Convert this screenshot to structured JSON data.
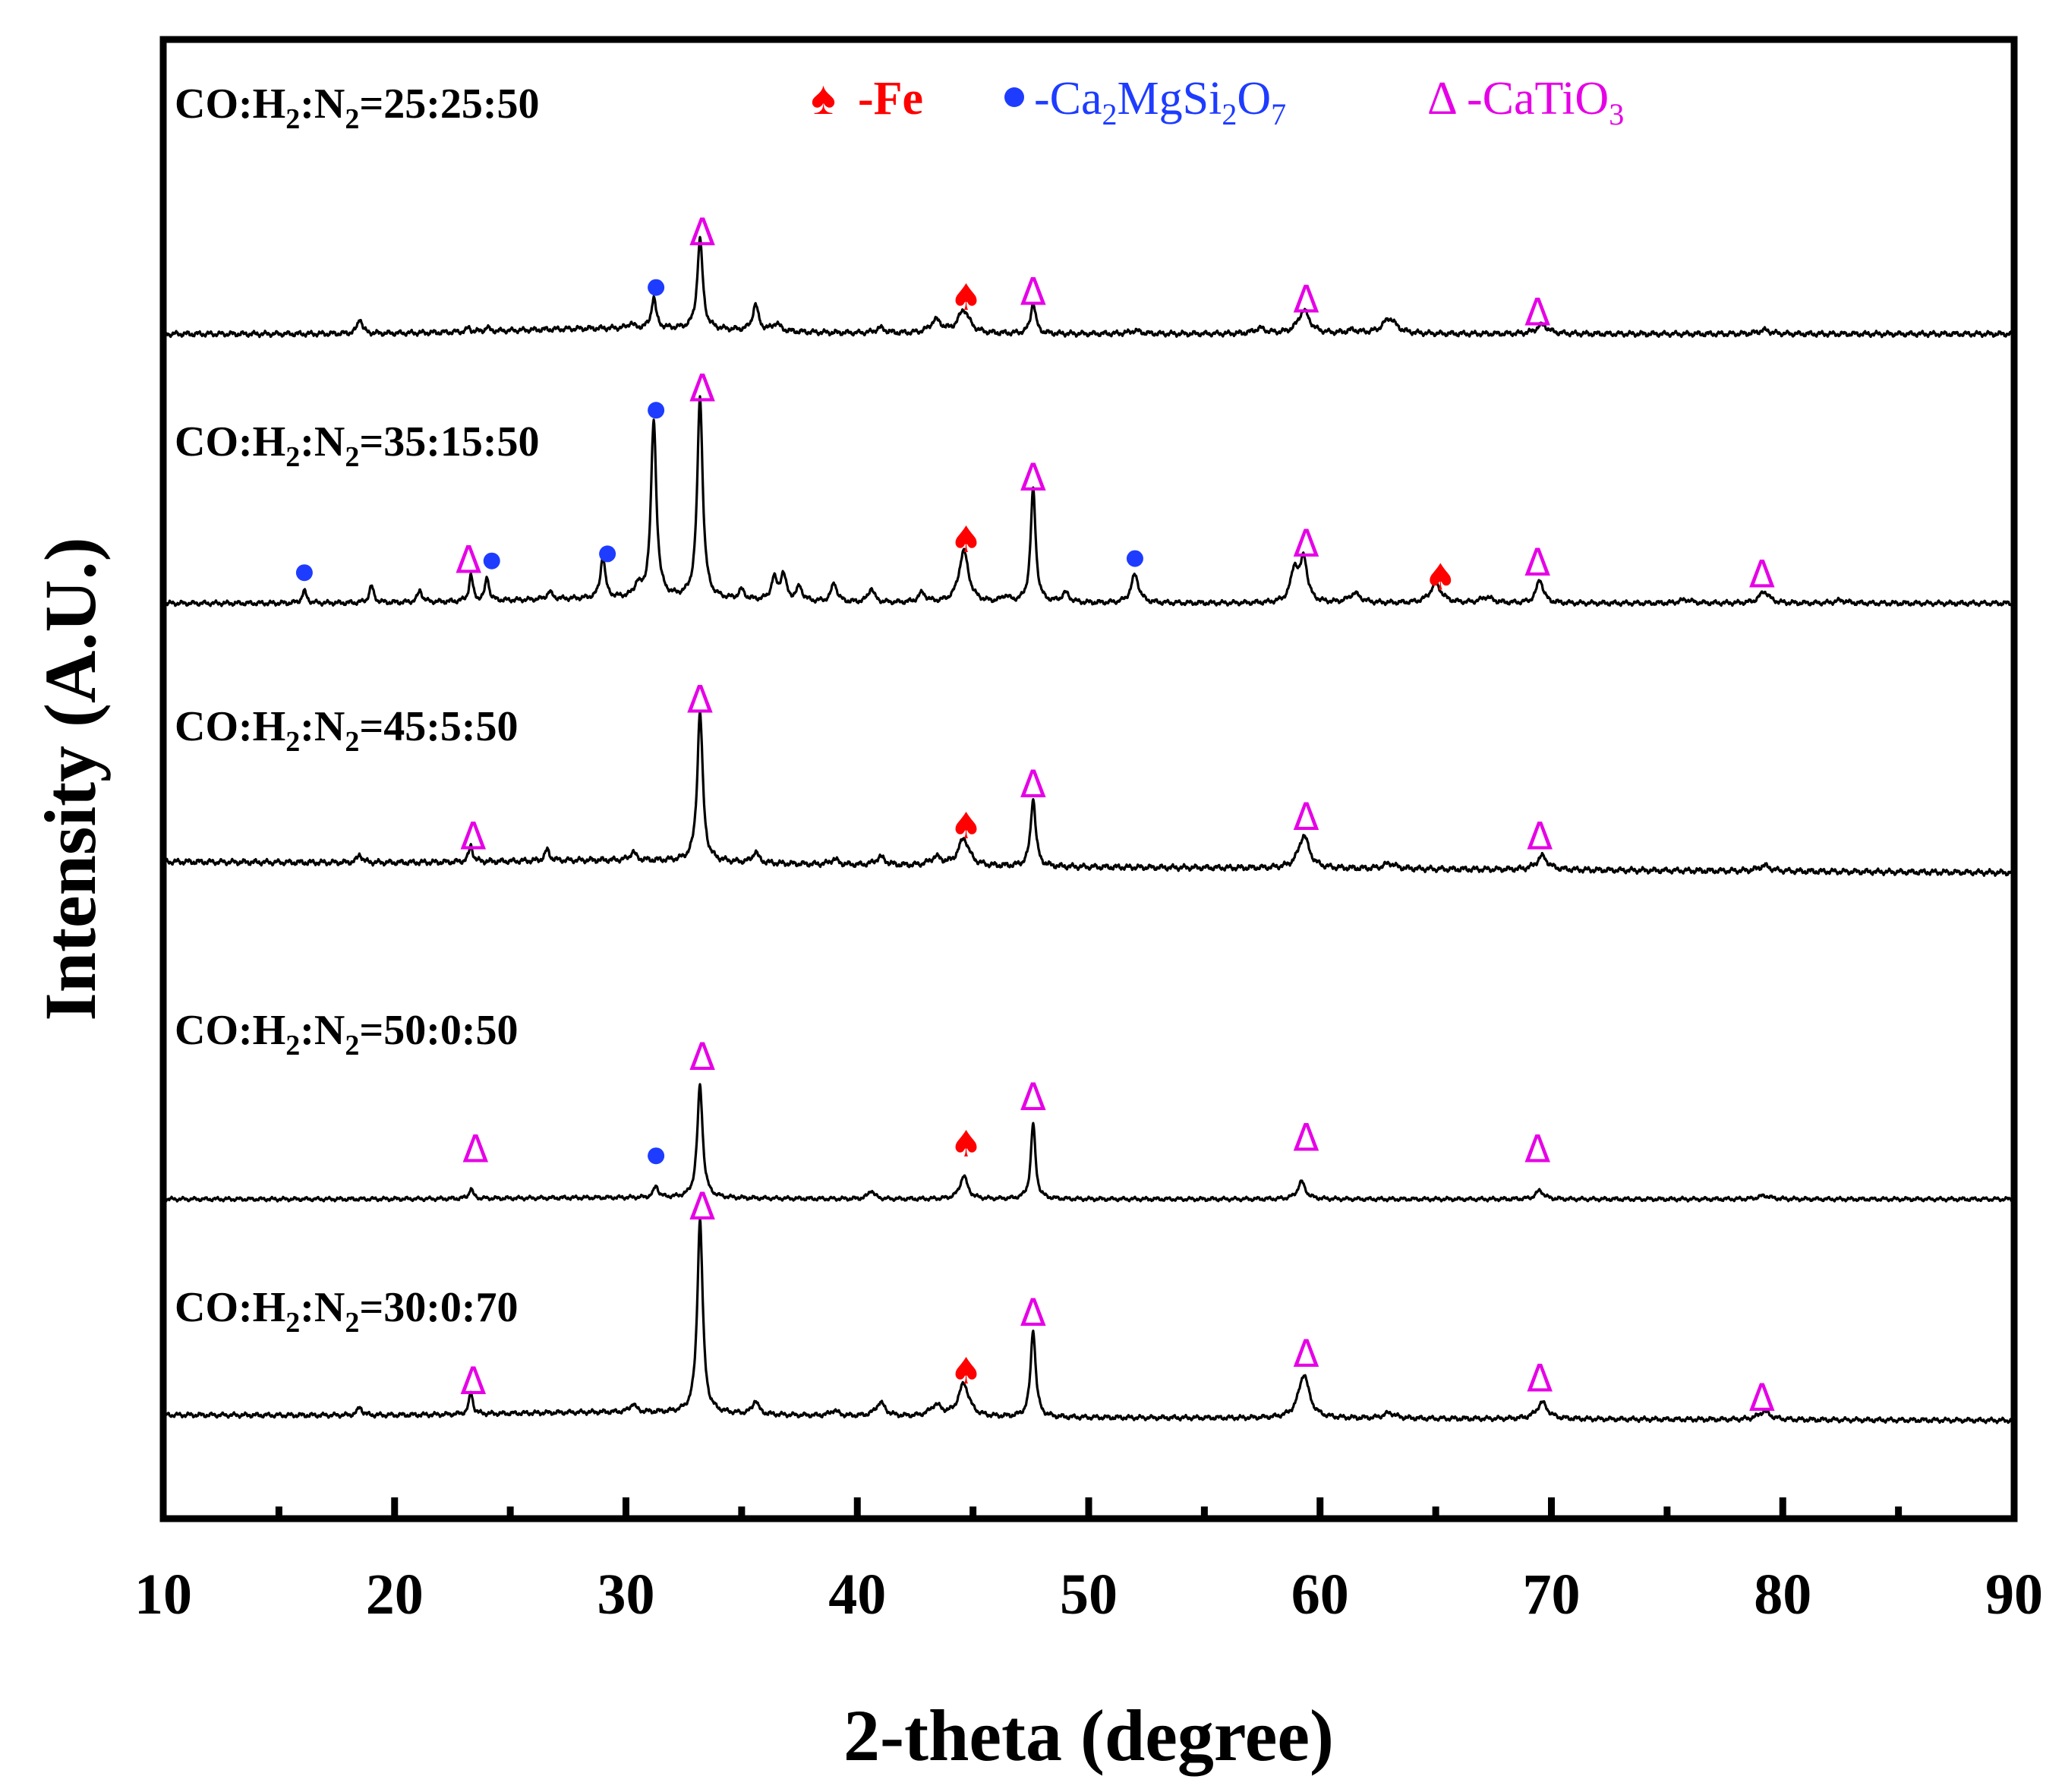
{
  "chart_data": {
    "type": "line",
    "title": "",
    "xlabel": "2-theta (degree)",
    "ylabel": "Intensity (A.U.)",
    "xlim": [
      10,
      90
    ],
    "xticks": [
      10,
      20,
      30,
      40,
      50,
      60,
      70,
      80,
      90
    ],
    "grid": false,
    "legend": {
      "placement": "top-center",
      "entries": [
        {
          "symbol": "♠",
          "text": "-Fe",
          "color": "#ff0000",
          "bold": true
        },
        {
          "symbol": "●",
          "text": "-Ca",
          "sub1": "2",
          "text2": "MgSi",
          "sub2": "2",
          "text3": "O",
          "sub3": "7",
          "color": "#1e3cff"
        },
        {
          "symbol": "Δ",
          "text": "-CaTiO",
          "sub1": "3",
          "color": "#e600e6"
        }
      ]
    },
    "colors": {
      "line": "#000000",
      "Fe": "#ff0000",
      "Ca2MgSi2O7": "#1e3cff",
      "CaTiO3": "#e600e6"
    },
    "series": [
      {
        "name": "CO:H2:N2=25:25:50",
        "label_main": "CO:H",
        "label_sub1": "2",
        "label_mid": ":N",
        "label_sub2": "2",
        "label_end": "=25:25:50",
        "baseline": 0.8,
        "slope": 0.0,
        "hump": 0.22,
        "noise": 0.12,
        "peaks": [
          [
            18.5,
            0.6,
            0.12
          ],
          [
            23.2,
            0.15,
            0.1
          ],
          [
            24.0,
            0.15,
            0.1
          ],
          [
            30.2,
            0.2,
            0.12
          ],
          [
            31.2,
            1.2,
            0.12
          ],
          [
            33.2,
            3.5,
            0.14
          ],
          [
            35.6,
            1.0,
            0.15
          ],
          [
            36.5,
            0.3,
            0.2
          ],
          [
            41.0,
            0.2,
            0.25
          ],
          [
            43.4,
            0.5,
            0.3
          ],
          [
            44.6,
            0.9,
            0.3
          ],
          [
            47.6,
            1.2,
            0.13
          ],
          [
            52.0,
            0.12,
            0.3
          ],
          [
            57.4,
            0.2,
            0.3
          ],
          [
            59.3,
            0.9,
            0.3
          ],
          [
            61.4,
            0.12,
            0.3
          ],
          [
            63.0,
            0.6,
            0.35
          ],
          [
            69.6,
            0.35,
            0.3
          ],
          [
            79.2,
            0.15,
            0.3
          ]
        ],
        "markers": [
          {
            "x": 31.3,
            "y": 2.6,
            "kind": "Ca2MgSi2O7"
          },
          {
            "x": 33.3,
            "y": 4.7,
            "kind": "CaTiO3"
          },
          {
            "x": 44.7,
            "y": 2.2,
            "kind": "Fe"
          },
          {
            "x": 47.6,
            "y": 2.4,
            "kind": "CaTiO3"
          },
          {
            "x": 59.4,
            "y": 2.1,
            "kind": "CaTiO3"
          },
          {
            "x": 69.4,
            "y": 1.6,
            "kind": "CaTiO3"
          }
        ]
      },
      {
        "name": "CO:H2:N2=35:15:50",
        "label_main": "CO:H",
        "label_sub1": "2",
        "label_mid": ":N",
        "label_sub2": "2",
        "label_end": "=35:15:50",
        "baseline": 0.5,
        "slope": 0.0,
        "hump": 0.2,
        "noise": 0.12,
        "peaks": [
          [
            16.1,
            0.5,
            0.12
          ],
          [
            19.0,
            0.7,
            0.12
          ],
          [
            21.1,
            0.5,
            0.12
          ],
          [
            23.3,
            1.1,
            0.1
          ],
          [
            24.0,
            1.0,
            0.1
          ],
          [
            26.7,
            0.3,
            0.15
          ],
          [
            29.0,
            1.8,
            0.12
          ],
          [
            30.5,
            0.5,
            0.15
          ],
          [
            31.2,
            7.5,
            0.14
          ],
          [
            33.2,
            8.6,
            0.14
          ],
          [
            35.0,
            0.4,
            0.15
          ],
          [
            36.4,
            0.9,
            0.15
          ],
          [
            36.8,
            1.1,
            0.15
          ],
          [
            37.5,
            0.6,
            0.15
          ],
          [
            39.0,
            0.8,
            0.15
          ],
          [
            40.6,
            0.6,
            0.15
          ],
          [
            42.8,
            0.4,
            0.2
          ],
          [
            44.6,
            2.2,
            0.25
          ],
          [
            46.4,
            0.25,
            0.2
          ],
          [
            47.6,
            4.8,
            0.13
          ],
          [
            49.0,
            0.4,
            0.2
          ],
          [
            52.0,
            1.2,
            0.2
          ],
          [
            58.9,
            1.4,
            0.2
          ],
          [
            59.3,
            1.8,
            0.18
          ],
          [
            61.5,
            0.4,
            0.3
          ],
          [
            65.0,
            0.8,
            0.3
          ],
          [
            67.2,
            0.25,
            0.3
          ],
          [
            69.5,
            1.0,
            0.18
          ],
          [
            75.8,
            0.15,
            0.3
          ],
          [
            79.2,
            0.5,
            0.25
          ],
          [
            82.5,
            0.12,
            0.3
          ]
        ],
        "markers": [
          {
            "x": 16.1,
            "y": 1.8,
            "kind": "Ca2MgSi2O7"
          },
          {
            "x": 23.2,
            "y": 2.3,
            "kind": "CaTiO3"
          },
          {
            "x": 24.2,
            "y": 2.3,
            "kind": "Ca2MgSi2O7"
          },
          {
            "x": 29.2,
            "y": 2.6,
            "kind": "Ca2MgSi2O7"
          },
          {
            "x": 31.3,
            "y": 8.7,
            "kind": "Ca2MgSi2O7"
          },
          {
            "x": 33.3,
            "y": 9.6,
            "kind": "CaTiO3"
          },
          {
            "x": 44.7,
            "y": 3.2,
            "kind": "Fe"
          },
          {
            "x": 47.6,
            "y": 5.8,
            "kind": "CaTiO3"
          },
          {
            "x": 52.0,
            "y": 2.4,
            "kind": "Ca2MgSi2O7"
          },
          {
            "x": 59.4,
            "y": 3.0,
            "kind": "CaTiO3"
          },
          {
            "x": 65.2,
            "y": 1.6,
            "kind": "Fe"
          },
          {
            "x": 69.4,
            "y": 2.2,
            "kind": "CaTiO3"
          },
          {
            "x": 79.1,
            "y": 1.7,
            "kind": "CaTiO3"
          }
        ]
      },
      {
        "name": "CO:H2:N2=45:5:50",
        "label_main": "CO:H",
        "label_sub1": "2",
        "label_mid": ":N",
        "label_sub2": "2",
        "label_end": "=45:5:50",
        "baseline": 0.3,
        "slope": 0.4,
        "hump": 0.15,
        "noise": 0.12,
        "peaks": [
          [
            18.5,
            0.3,
            0.12
          ],
          [
            23.3,
            0.6,
            0.1
          ],
          [
            26.6,
            0.4,
            0.12
          ],
          [
            30.3,
            0.3,
            0.15
          ],
          [
            33.2,
            5.5,
            0.14
          ],
          [
            35.6,
            0.4,
            0.15
          ],
          [
            39.0,
            0.2,
            0.2
          ],
          [
            41.0,
            0.3,
            0.25
          ],
          [
            43.4,
            0.3,
            0.3
          ],
          [
            44.6,
            1.0,
            0.28
          ],
          [
            47.6,
            2.5,
            0.13
          ],
          [
            59.3,
            1.2,
            0.28
          ],
          [
            63.0,
            0.2,
            0.3
          ],
          [
            69.6,
            0.5,
            0.28
          ],
          [
            79.2,
            0.2,
            0.3
          ]
        ],
        "markers": [
          {
            "x": 23.4,
            "y": 1.6,
            "kind": "CaTiO3"
          },
          {
            "x": 33.2,
            "y": 6.6,
            "kind": "CaTiO3"
          },
          {
            "x": 44.7,
            "y": 2.0,
            "kind": "Fe"
          },
          {
            "x": 47.6,
            "y": 3.5,
            "kind": "CaTiO3"
          },
          {
            "x": 59.4,
            "y": 2.3,
            "kind": "CaTiO3"
          },
          {
            "x": 69.5,
            "y": 1.6,
            "kind": "CaTiO3"
          }
        ]
      },
      {
        "name": "CO:H2:N2=50:0:50",
        "label_main": "CO:H",
        "label_sub1": "2",
        "label_mid": ":N",
        "label_sub2": "2",
        "label_end": "=50:0:50",
        "baseline": 0.1,
        "slope": 0.0,
        "hump": 0.05,
        "noise": 0.08,
        "peaks": [
          [
            23.3,
            0.35,
            0.1
          ],
          [
            31.3,
            0.4,
            0.12
          ],
          [
            33.2,
            3.9,
            0.14
          ],
          [
            40.6,
            0.3,
            0.15
          ],
          [
            44.6,
            0.8,
            0.2
          ],
          [
            47.6,
            2.6,
            0.12
          ],
          [
            59.2,
            0.6,
            0.2
          ],
          [
            69.5,
            0.3,
            0.2
          ],
          [
            79.2,
            0.12,
            0.3
          ]
        ],
        "markers": [
          {
            "x": 23.5,
            "y": 1.8,
            "kind": "CaTiO3"
          },
          {
            "x": 31.3,
            "y": 1.6,
            "kind": "Ca2MgSi2O7"
          },
          {
            "x": 33.3,
            "y": 5.0,
            "kind": "CaTiO3"
          },
          {
            "x": 44.7,
            "y": 2.0,
            "kind": "Fe"
          },
          {
            "x": 47.6,
            "y": 3.6,
            "kind": "CaTiO3"
          },
          {
            "x": 59.4,
            "y": 2.2,
            "kind": "CaTiO3"
          },
          {
            "x": 69.4,
            "y": 1.8,
            "kind": "CaTiO3"
          }
        ]
      },
      {
        "name": "CO:H2:N2=30:0:70",
        "label_main": "CO:H",
        "label_sub1": "2",
        "label_mid": ":N",
        "label_sub2": "2",
        "label_end": "=30:0:70",
        "baseline": 0.4,
        "slope": 0.2,
        "hump": 0.15,
        "noise": 0.1,
        "peaks": [
          [
            18.5,
            0.3,
            0.12
          ],
          [
            23.3,
            0.8,
            0.1
          ],
          [
            30.3,
            0.3,
            0.15
          ],
          [
            33.2,
            7.1,
            0.14
          ],
          [
            35.6,
            0.5,
            0.15
          ],
          [
            39.0,
            0.2,
            0.2
          ],
          [
            41.0,
            0.5,
            0.25
          ],
          [
            43.4,
            0.4,
            0.3
          ],
          [
            44.6,
            1.2,
            0.28
          ],
          [
            47.6,
            3.2,
            0.13
          ],
          [
            59.3,
            1.6,
            0.28
          ],
          [
            63.0,
            0.2,
            0.3
          ],
          [
            69.6,
            0.6,
            0.28
          ],
          [
            79.2,
            0.3,
            0.3
          ]
        ],
        "markers": [
          {
            "x": 23.4,
            "y": 1.8,
            "kind": "CaTiO3"
          },
          {
            "x": 33.3,
            "y": 8.2,
            "kind": "CaTiO3"
          },
          {
            "x": 44.7,
            "y": 2.2,
            "kind": "Fe"
          },
          {
            "x": 47.6,
            "y": 4.3,
            "kind": "CaTiO3"
          },
          {
            "x": 59.4,
            "y": 2.8,
            "kind": "CaTiO3"
          },
          {
            "x": 69.5,
            "y": 1.9,
            "kind": "CaTiO3"
          },
          {
            "x": 79.1,
            "y": 1.2,
            "kind": "CaTiO3"
          }
        ]
      }
    ]
  }
}
